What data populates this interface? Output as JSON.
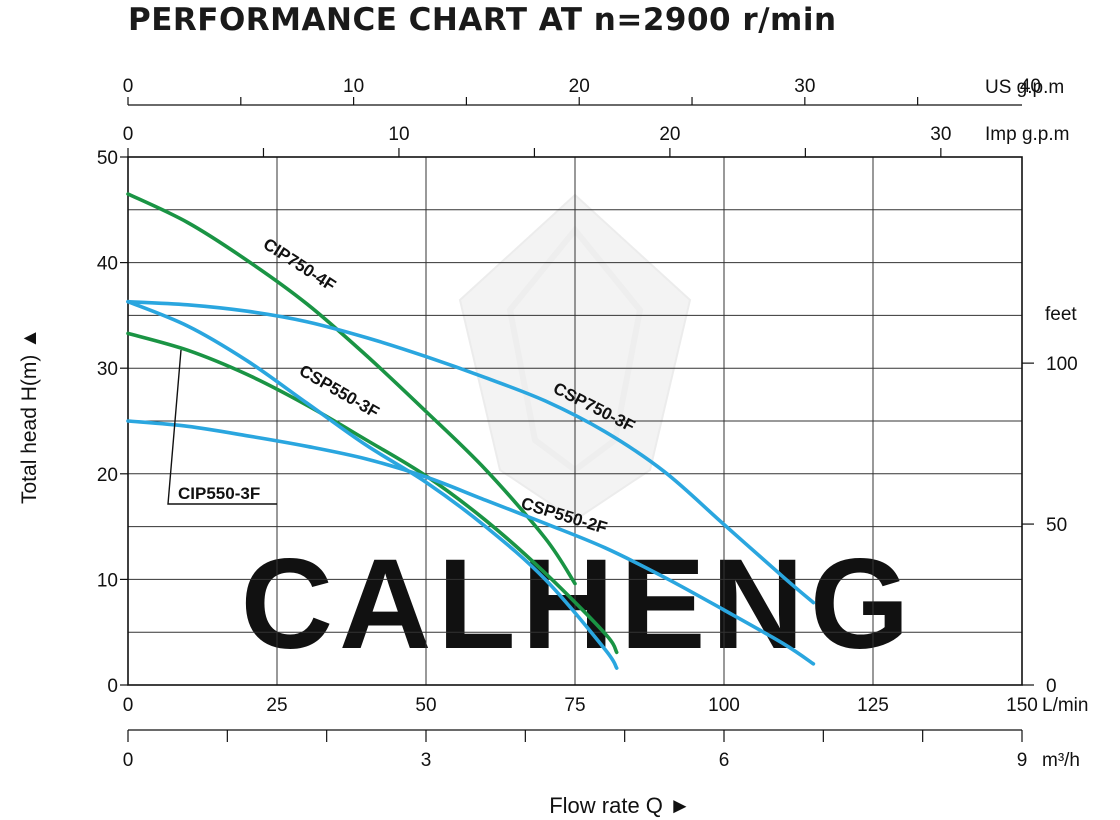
{
  "title": "PERFORMANCE CHART AT n=2900 r/min",
  "watermark": "CALHENG",
  "colors": {
    "green": "#1a9444",
    "blue": "#2aa6df",
    "grid": "#333333"
  },
  "chart_data": {
    "type": "line",
    "xlabel": "Flow rate  Q ►",
    "ylabel": "Total  head H(m) ▲",
    "xlim": [
      0,
      150
    ],
    "ylim": [
      0,
      50
    ],
    "grid": true,
    "x_unit": "L/min",
    "x_ticks": [
      0,
      25,
      50,
      75,
      100,
      125,
      150
    ],
    "y_ticks": [
      0,
      10,
      20,
      30,
      40,
      50
    ],
    "secondary_axes": {
      "us_gpm": {
        "unit": "US g.p.m",
        "ticks": [
          0,
          10,
          20,
          30,
          40
        ]
      },
      "imp_gpm": {
        "unit": "Imp g.p.m",
        "ticks": [
          0,
          10,
          20,
          30
        ]
      },
      "m3h": {
        "unit": "m³/h",
        "ticks": [
          0,
          3,
          6,
          9
        ]
      },
      "feet": {
        "unit": "feet",
        "ticks": [
          0,
          50,
          100
        ]
      }
    },
    "series": [
      {
        "name": "CIP750-4F",
        "color": "green",
        "x": [
          0,
          10,
          20,
          30,
          40,
          50,
          60,
          70,
          75
        ],
        "y": [
          46.5,
          43.8,
          40.2,
          36.1,
          31.2,
          25.9,
          20.4,
          13.9,
          9.6
        ]
      },
      {
        "name": "CIP550-3F",
        "color": "green",
        "x": [
          0,
          10,
          20,
          30,
          40,
          50,
          60,
          70,
          80,
          82
        ],
        "y": [
          33.3,
          31.7,
          29.4,
          26.5,
          23.2,
          19.8,
          15.6,
          10.6,
          4.9,
          3.1
        ]
      },
      {
        "name": "CSP550-3F",
        "color": "blue",
        "x": [
          0,
          10,
          20,
          30,
          40,
          50,
          60,
          70,
          80,
          82
        ],
        "y": [
          36.3,
          34.0,
          30.7,
          26.7,
          22.7,
          19.2,
          15.0,
          10.0,
          3.4,
          1.6
        ]
      },
      {
        "name": "CSP750-3F",
        "color": "blue",
        "x": [
          0,
          10,
          20,
          30,
          40,
          50,
          60,
          70,
          80,
          90,
          100,
          110,
          115
        ],
        "y": [
          36.3,
          36.0,
          35.4,
          34.4,
          32.9,
          31.1,
          29.1,
          26.9,
          24.0,
          20.2,
          15.2,
          10.2,
          7.8
        ]
      },
      {
        "name": "CSP550-2F",
        "color": "blue",
        "x": [
          0,
          10,
          20,
          30,
          40,
          50,
          60,
          70,
          80,
          90,
          100,
          110,
          115
        ],
        "y": [
          25.0,
          24.5,
          23.6,
          22.6,
          21.4,
          19.7,
          17.5,
          15.3,
          13.0,
          10.2,
          7.1,
          3.9,
          2.0
        ]
      }
    ]
  }
}
